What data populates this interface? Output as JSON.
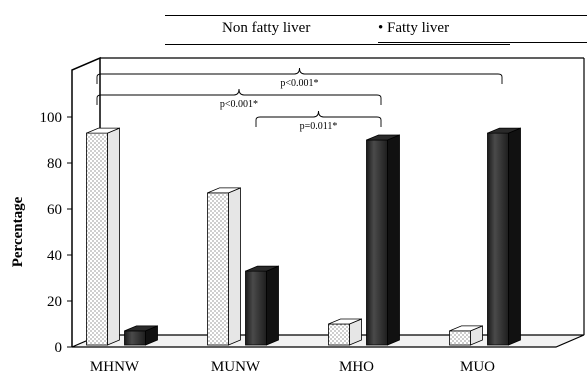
{
  "chart_data": {
    "type": "bar",
    "title": "",
    "xlabel": "",
    "ylabel": "Percentage",
    "ylim": [
      0,
      100
    ],
    "yticks": [
      "0",
      "20",
      "40",
      "60",
      "80",
      "100"
    ],
    "categories": [
      "MHNW",
      "MUNW",
      "MHO",
      "MUO"
    ],
    "series": [
      {
        "name": "Non fatty liver",
        "values": [
          93,
          67,
          10,
          7
        ],
        "pattern": "dotted",
        "color": "#ffffff"
      },
      {
        "name": "Fatty liver",
        "values": [
          7,
          33,
          90,
          93
        ],
        "pattern": "solid",
        "color": "#333333"
      }
    ],
    "legend": {
      "position": "top",
      "marker_fatty": "•"
    },
    "annotations": [
      {
        "text": "p<0.001*",
        "from": "MHNW",
        "to": "MUO"
      },
      {
        "text": "p<0.001*",
        "from": "MHNW",
        "to": "MHO"
      },
      {
        "text": "p=0.011*",
        "from": "MUNW",
        "to": "MHO"
      }
    ],
    "grid": false
  }
}
